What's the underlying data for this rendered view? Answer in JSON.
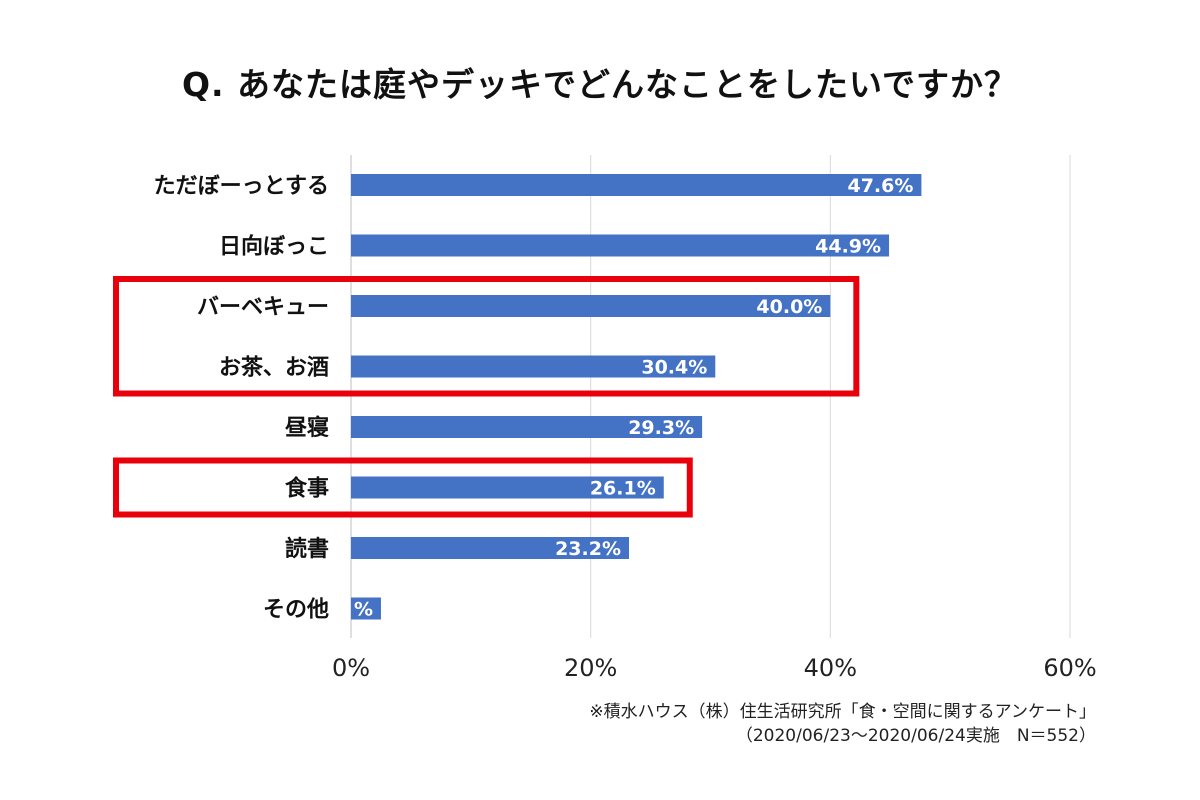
{
  "chart_data": {
    "type": "bar",
    "orientation": "horizontal",
    "title": "Q. あなたは庭やデッキでどんなことをしたいですか？",
    "categories": [
      "ただぼーっとする",
      "日向ぼっこ",
      "バーベキュー",
      "お茶、お酒",
      "昼寝",
      "食事",
      "読書",
      "その他"
    ],
    "values": [
      47.6,
      44.9,
      40.0,
      30.4,
      29.3,
      26.1,
      23.2,
      2.5
    ],
    "value_labels": [
      "47.6%",
      "44.9%",
      "40.0%",
      "30.4%",
      "29.3%",
      "26.1%",
      "23.2%",
      "%"
    ],
    "xlim": [
      0,
      60
    ],
    "xticks": [
      0,
      20,
      40,
      60
    ],
    "xtick_labels": [
      "0%",
      "20%",
      "40%",
      "60%"
    ],
    "grid": true,
    "bar_color": "#4472C4",
    "highlight_color": "#E8000B",
    "highlight_groups": [
      [
        "バーベキュー",
        "お茶、お酒"
      ],
      [
        "食事"
      ]
    ]
  },
  "source": {
    "line1": "※積水ハウス（株）住生活研究所「食・空間に関するアンケート」",
    "line2": "（2020/06/23～2020/06/24実施　N＝552）"
  }
}
